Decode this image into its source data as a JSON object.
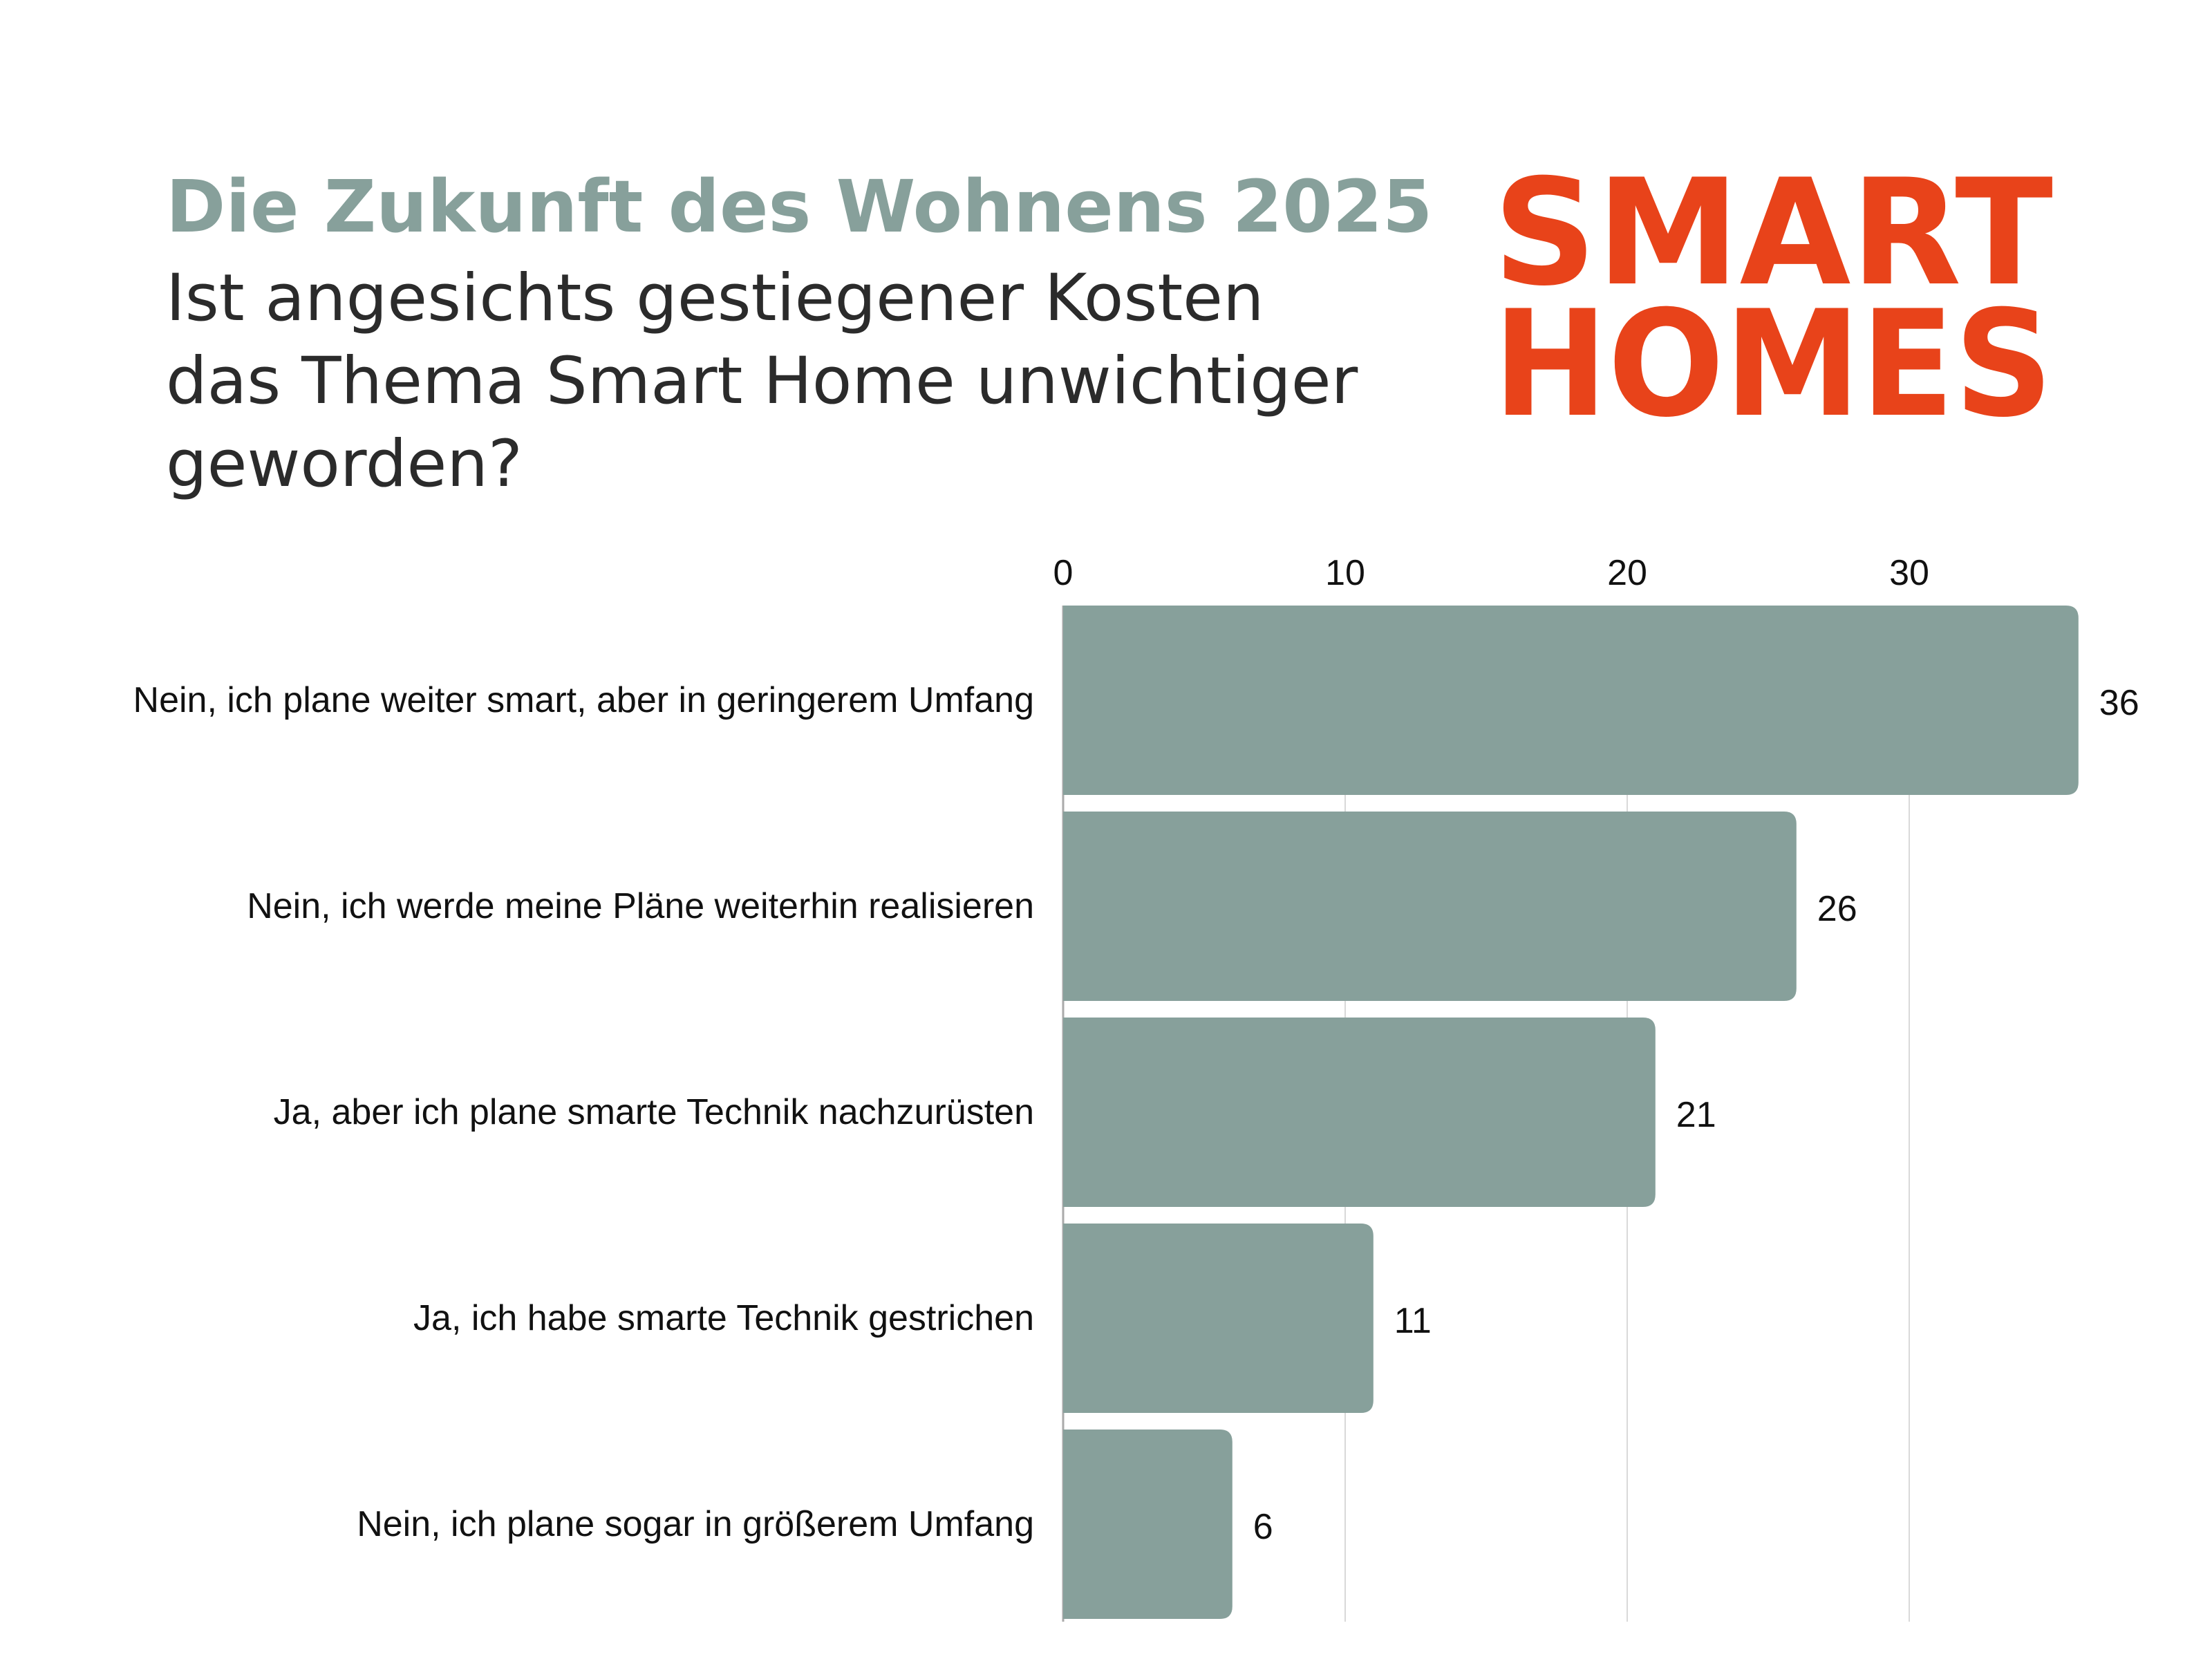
{
  "header": {
    "kicker": "Die Zukunft des Wohnens 2025",
    "question": "Ist angesichts gestiegener Kosten das Thema Smart Home unwichtiger geworden?"
  },
  "logo": {
    "line1": "SMART",
    "line2": "HOMES",
    "color": "#e8431a"
  },
  "colors": {
    "bar": "#87a09b",
    "grid": "#d9d9d9",
    "axis": "#aaaaaa"
  },
  "chart_data": {
    "type": "bar",
    "orientation": "horizontal",
    "categories": [
      "Nein, ich plane weiter smart, aber in geringerem Umfang",
      "Nein, ich werde meine Pläne weiterhin realisieren",
      "Ja, aber ich plane smarte Technik nachzurüsten",
      "Ja, ich habe smarte Technik gestrichen",
      "Nein, ich plane sogar in größerem Umfang"
    ],
    "values": [
      36,
      26,
      21,
      11,
      6
    ],
    "xticks": [
      0,
      10,
      20,
      30
    ],
    "xlim": [
      0,
      36
    ],
    "xaxis_position": "top",
    "grid": true,
    "legend": "none",
    "title": "",
    "xlabel": "",
    "ylabel": ""
  }
}
